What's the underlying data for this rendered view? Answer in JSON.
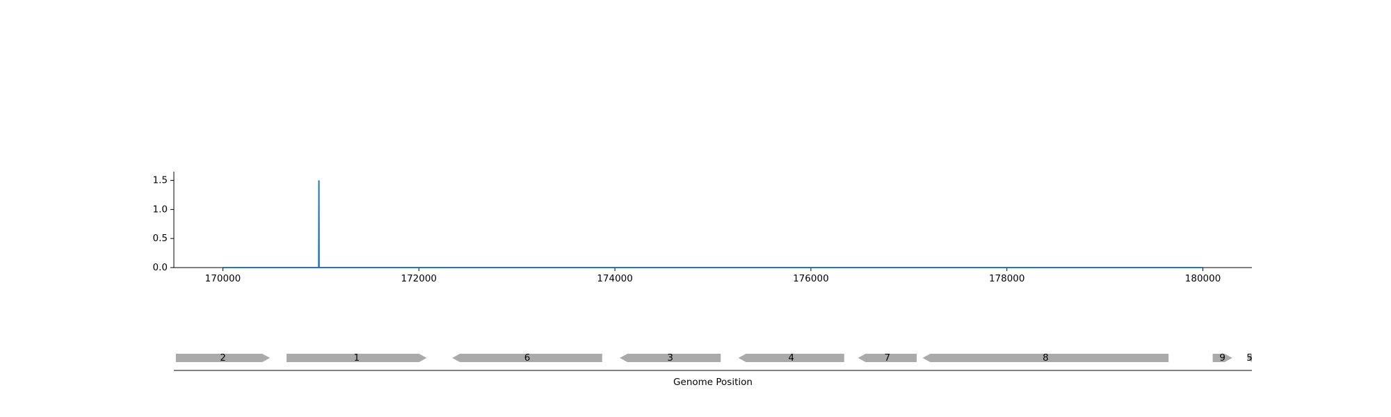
{
  "chart_data": [
    {
      "type": "line",
      "title": "",
      "xlabel": "",
      "ylabel": "",
      "xlim": [
        169500,
        180500
      ],
      "ylim": [
        0,
        1.65
      ],
      "xticks": [
        170000,
        172000,
        174000,
        176000,
        178000,
        180000
      ],
      "xtick_labels": [
        "170000",
        "172000",
        "174000",
        "176000",
        "178000",
        "180000"
      ],
      "yticks": [
        0.0,
        0.5,
        1.0,
        1.5
      ],
      "ytick_labels": [
        "0.0",
        "0.5",
        "1.0",
        "1.5"
      ],
      "grid": false,
      "line_color": "#1f77b4",
      "series": [
        {
          "x": [
            170000,
            170978,
            170980,
            170982,
            180000
          ],
          "values": [
            0,
            0,
            1.5,
            0,
            0
          ]
        }
      ]
    },
    {
      "type": "gene-track",
      "xlabel": "Genome Position",
      "xlim": [
        169500,
        180500
      ],
      "gene_color": "#aaaaaa",
      "genes": [
        {
          "label": "2",
          "start": 169520,
          "end": 170480,
          "strand": "+"
        },
        {
          "label": "1",
          "start": 170650,
          "end": 172080,
          "strand": "+"
        },
        {
          "label": "6",
          "start": 172340,
          "end": 173870,
          "strand": "-"
        },
        {
          "label": "3",
          "start": 174050,
          "end": 175080,
          "strand": "-"
        },
        {
          "label": "4",
          "start": 175260,
          "end": 176340,
          "strand": "-"
        },
        {
          "label": "7",
          "start": 176480,
          "end": 177080,
          "strand": "-"
        },
        {
          "label": "8",
          "start": 177140,
          "end": 179650,
          "strand": "-"
        },
        {
          "label": "9",
          "start": 180100,
          "end": 180300,
          "strand": "+"
        },
        {
          "label": "5",
          "start": 180450,
          "end": 180500,
          "strand": "-"
        }
      ]
    }
  ]
}
